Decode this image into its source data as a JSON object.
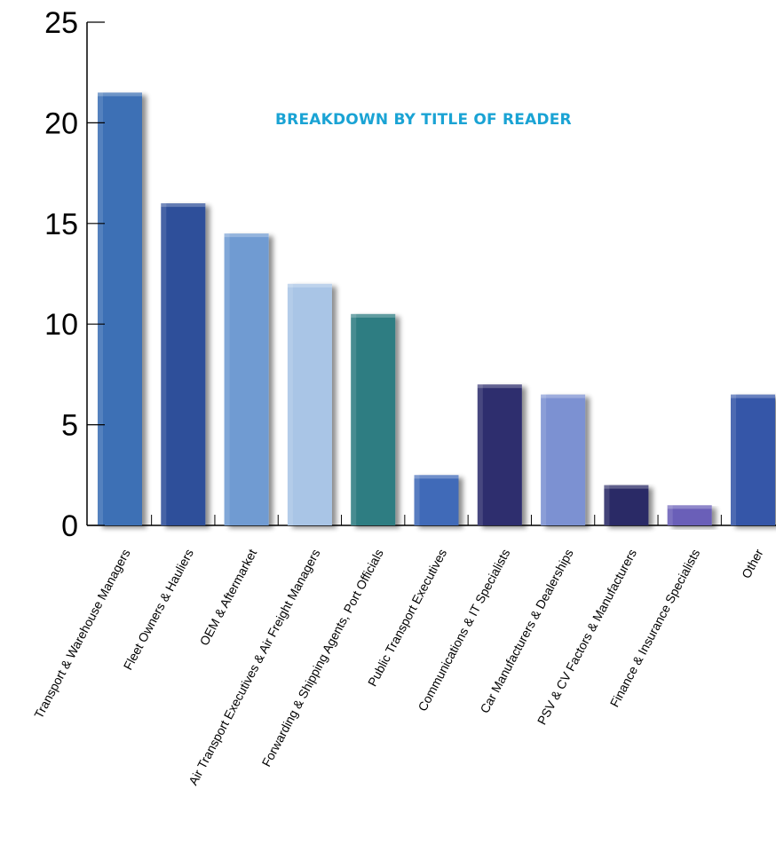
{
  "chart_data": {
    "type": "bar",
    "title": "BREAKDOWN BY TITLE OF READER",
    "xlabel": "",
    "ylabel": "",
    "ylim": [
      0,
      25
    ],
    "yticks": [
      0,
      5,
      10,
      15,
      20,
      25
    ],
    "grid": false,
    "categories": [
      "Transport & Warehouse Managers",
      "Fleet Owners & Hauliers",
      "OEM & Aftermarket",
      "Air Transport Executives & Air Freight Managers",
      "Forwarding & Shipping Agents, Port Officials",
      "Public Transport Executives",
      "Communications & IT Specialists",
      "Car Manufacturers & Dealerships",
      "PSV & CV Factors & Manufacturers",
      "Finance & Insurance Specialists",
      "Other"
    ],
    "values": [
      21.5,
      16,
      14.5,
      12,
      10.5,
      2.5,
      7,
      6.5,
      2,
      1,
      6.5
    ],
    "colors": [
      "#3e6fb5",
      "#2e4f9a",
      "#6f9bd2",
      "#a9c5e6",
      "#2d7d82",
      "#3f6ab8",
      "#2e2d6e",
      "#7b91d2",
      "#2b2a66",
      "#6a5fb8",
      "#3656a8"
    ]
  }
}
